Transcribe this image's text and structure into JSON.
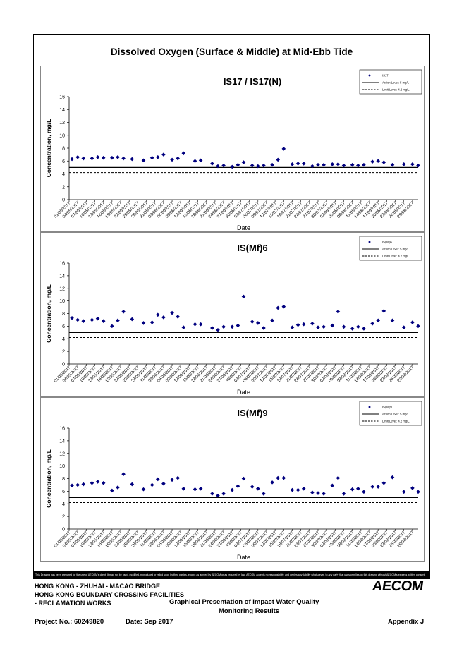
{
  "page": {
    "main_title": "Dissolved Oxygen (Surface & Middle) at Mid-Ebb Tide",
    "disclaimer": "This Drawing has been prepared for the use of AECOM's client. It may not be used, modified, reproduced or relied upon by third parties, except as agreed by AECOM or as required by law. AECOM accepts no responsibility, and denies any liability whatsoever, to any party that uses or relies on this drawing without AECOM's express written consent.",
    "footer": {
      "line1": "HONG KONG - ZHUHAI - MACAO BRIDGE",
      "line2": "HONG KONG BOUNDARY CROSSING FACILITIES",
      "line3": "- RECLAMATION WORKS",
      "center_line1": "Graphical Presentation of Impact Water Quality",
      "center_line2": "Monitoring Results",
      "project": "Project No.: 60249820",
      "date": "Date: Sep 2017",
      "appendix": "Appendix J",
      "logo": "AECOM"
    },
    "colors": {
      "marker": "#00007f",
      "line": "#000000"
    }
  },
  "chart_data": [
    {
      "type": "scatter",
      "title": "IS17 / IS17(N)",
      "xlabel": "Date",
      "ylabel": "Concentration, mg/L",
      "ylim": [
        0,
        16
      ],
      "yticks": [
        0,
        2,
        4,
        6,
        8,
        10,
        12,
        14,
        16
      ],
      "xlim": [
        "01/05/2017",
        "31/08/2017"
      ],
      "xtick_labels": [
        "01/05/2017",
        "04/05/2017",
        "07/05/2017",
        "10/05/2017",
        "13/05/2017",
        "16/05/2017",
        "19/05/2017",
        "22/05/2017",
        "25/05/2017",
        "28/05/2017",
        "31/05/2017",
        "03/06/2017",
        "06/06/2017",
        "09/06/2017",
        "12/06/2017",
        "15/06/2017",
        "18/06/2017",
        "21/06/2017",
        "24/06/2017",
        "27/06/2017",
        "30/06/2017",
        "03/07/2017",
        "06/07/2017",
        "09/07/2017",
        "12/07/2017",
        "15/07/2017",
        "18/07/2017",
        "21/07/2017",
        "24/07/2017",
        "27/07/2017",
        "30/07/2017",
        "02/08/2017",
        "05/08/2017",
        "08/08/2017",
        "11/08/2017",
        "14/08/2017",
        "17/08/2017",
        "20/08/2017",
        "23/08/2017",
        "26/08/2017",
        "29/08/2017"
      ],
      "grid": false,
      "legend_position": "top-right",
      "legend": [
        "IS17",
        "Action Level: 5 mg/L",
        "Limit Level: 4.2 mg/L"
      ],
      "action_level": 5,
      "limit_level": 4.2,
      "series": [
        {
          "name": "IS17",
          "x": [
            "02/05/2017",
            "04/05/2017",
            "06/05/2017",
            "09/05/2017",
            "11/05/2017",
            "13/05/2017",
            "16/05/2017",
            "18/05/2017",
            "20/05/2017",
            "23/05/2017",
            "27/05/2017",
            "30/05/2017",
            "01/06/2017",
            "03/06/2017",
            "06/06/2017",
            "08/06/2017",
            "10/06/2017",
            "14/06/2017",
            "16/06/2017",
            "20/06/2017",
            "22/06/2017",
            "24/06/2017",
            "27/06/2017",
            "29/06/2017",
            "01/07/2017",
            "04/07/2017",
            "06/07/2017",
            "08/07/2017",
            "11/07/2017",
            "13/07/2017",
            "15/07/2017",
            "18/07/2017",
            "20/07/2017",
            "22/07/2017",
            "25/07/2017",
            "27/07/2017",
            "29/07/2017",
            "01/08/2017",
            "03/08/2017",
            "05/08/2017",
            "08/08/2017",
            "10/08/2017",
            "12/08/2017",
            "15/08/2017",
            "17/08/2017",
            "19/08/2017",
            "22/08/2017",
            "26/08/2017",
            "29/08/2017",
            "31/08/2017"
          ],
          "y": [
            6.3,
            6.6,
            6.4,
            6.4,
            6.6,
            6.5,
            6.5,
            6.6,
            6.4,
            6.3,
            6.1,
            6.5,
            6.6,
            7.0,
            6.2,
            6.4,
            7.2,
            6.0,
            6.1,
            5.6,
            5.2,
            5.3,
            5.1,
            5.4,
            5.8,
            5.3,
            5.2,
            5.3,
            5.4,
            6.2,
            7.9,
            5.5,
            5.6,
            5.6,
            5.2,
            5.4,
            5.4,
            5.5,
            5.5,
            5.3,
            5.4,
            5.3,
            5.4,
            5.9,
            6.0,
            5.8,
            5.4,
            5.5,
            5.5,
            5.3
          ]
        }
      ]
    },
    {
      "type": "scatter",
      "title": "IS(Mf)6",
      "xlabel": "Date",
      "ylabel": "Concentration, mg/L",
      "ylim": [
        0,
        16
      ],
      "yticks": [
        0,
        2,
        4,
        6,
        8,
        10,
        12,
        14,
        16
      ],
      "xlim": [
        "01/05/2017",
        "31/08/2017"
      ],
      "xtick_labels": [
        "01/05/2017",
        "04/05/2017",
        "07/05/2017",
        "10/05/2017",
        "13/05/2017",
        "16/05/2017",
        "19/05/2017",
        "22/05/2017",
        "25/05/2017",
        "28/05/2017",
        "31/05/2017",
        "03/06/2017",
        "06/06/2017",
        "09/06/2017",
        "12/06/2017",
        "15/06/2017",
        "18/06/2017",
        "21/06/2017",
        "24/06/2017",
        "27/06/2017",
        "30/06/2017",
        "03/07/2017",
        "06/07/2017",
        "09/07/2017",
        "12/07/2017",
        "15/07/2017",
        "18/07/2017",
        "21/07/2017",
        "24/07/2017",
        "27/07/2017",
        "30/07/2017",
        "02/08/2017",
        "05/08/2017",
        "08/08/2017",
        "11/08/2017",
        "14/08/2017",
        "17/08/2017",
        "20/08/2017",
        "23/08/2017",
        "26/08/2017",
        "29/08/2017"
      ],
      "grid": false,
      "legend_position": "top-right",
      "legend": [
        "IS(Mf)6",
        "Action Level: 5 mg/L",
        "Limit Level: 4.2 mg/L"
      ],
      "action_level": 5,
      "limit_level": 4.2,
      "series": [
        {
          "name": "IS(Mf)6",
          "x": [
            "02/05/2017",
            "04/05/2017",
            "06/05/2017",
            "09/05/2017",
            "11/05/2017",
            "13/05/2017",
            "16/05/2017",
            "18/05/2017",
            "20/05/2017",
            "23/05/2017",
            "27/05/2017",
            "30/05/2017",
            "01/06/2017",
            "03/06/2017",
            "06/06/2017",
            "08/06/2017",
            "10/06/2017",
            "14/06/2017",
            "16/06/2017",
            "20/06/2017",
            "22/06/2017",
            "24/06/2017",
            "27/06/2017",
            "29/06/2017",
            "01/07/2017",
            "04/07/2017",
            "06/07/2017",
            "08/07/2017",
            "11/07/2017",
            "13/07/2017",
            "15/07/2017",
            "18/07/2017",
            "20/07/2017",
            "22/07/2017",
            "25/07/2017",
            "27/07/2017",
            "29/07/2017",
            "01/08/2017",
            "03/08/2017",
            "05/08/2017",
            "08/08/2017",
            "10/08/2017",
            "12/08/2017",
            "15/08/2017",
            "17/08/2017",
            "19/08/2017",
            "22/08/2017",
            "26/08/2017",
            "29/08/2017",
            "31/08/2017"
          ],
          "y": [
            7.3,
            7.0,
            6.8,
            7.0,
            7.2,
            6.8,
            6.0,
            6.9,
            8.3,
            7.1,
            6.5,
            6.6,
            7.8,
            7.4,
            8.1,
            7.5,
            5.8,
            6.3,
            6.3,
            5.7,
            5.4,
            5.9,
            5.9,
            6.1,
            10.7,
            6.7,
            6.5,
            5.7,
            6.9,
            8.9,
            9.1,
            5.8,
            6.2,
            6.3,
            6.4,
            5.8,
            5.9,
            6.1,
            8.3,
            5.9,
            5.6,
            5.9,
            5.6,
            6.4,
            6.9,
            8.4,
            6.9,
            5.8,
            6.6,
            6.0
          ]
        }
      ]
    },
    {
      "type": "scatter",
      "title": "IS(Mf)9",
      "xlabel": "Date",
      "ylabel": "Concentration, mg/L",
      "ylim": [
        0,
        16
      ],
      "yticks": [
        0,
        2,
        4,
        6,
        8,
        10,
        12,
        14,
        16
      ],
      "xlim": [
        "01/05/2017",
        "31/08/2017"
      ],
      "xtick_labels": [
        "01/05/2017",
        "04/05/2017",
        "07/05/2017",
        "10/05/2017",
        "13/05/2017",
        "16/05/2017",
        "19/05/2017",
        "22/05/2017",
        "25/05/2017",
        "28/05/2017",
        "31/05/2017",
        "03/06/2017",
        "06/06/2017",
        "09/06/2017",
        "12/06/2017",
        "15/06/2017",
        "18/06/2017",
        "21/06/2017",
        "24/06/2017",
        "27/06/2017",
        "30/06/2017",
        "03/07/2017",
        "06/07/2017",
        "09/07/2017",
        "12/07/2017",
        "15/07/2017",
        "18/07/2017",
        "21/07/2017",
        "24/07/2017",
        "27/07/2017",
        "30/07/2017",
        "02/08/2017",
        "05/08/2017",
        "08/08/2017",
        "11/08/2017",
        "14/08/2017",
        "17/08/2017",
        "20/08/2017",
        "23/08/2017",
        "26/08/2017",
        "29/08/2017"
      ],
      "grid": false,
      "legend_position": "top-right",
      "legend": [
        "IS(Mf)9",
        "Action Level: 5 mg/L",
        "Limit Level: 4.2 mg/L"
      ],
      "action_level": 5,
      "limit_level": 4.2,
      "series": [
        {
          "name": "IS(Mf)9",
          "x": [
            "02/05/2017",
            "04/05/2017",
            "06/05/2017",
            "09/05/2017",
            "11/05/2017",
            "13/05/2017",
            "16/05/2017",
            "18/05/2017",
            "20/05/2017",
            "23/05/2017",
            "27/05/2017",
            "30/05/2017",
            "01/06/2017",
            "03/06/2017",
            "06/06/2017",
            "08/06/2017",
            "10/06/2017",
            "14/06/2017",
            "16/06/2017",
            "20/06/2017",
            "22/06/2017",
            "24/06/2017",
            "27/06/2017",
            "29/06/2017",
            "01/07/2017",
            "04/07/2017",
            "06/07/2017",
            "08/07/2017",
            "11/07/2017",
            "13/07/2017",
            "15/07/2017",
            "18/07/2017",
            "20/07/2017",
            "22/07/2017",
            "25/07/2017",
            "27/07/2017",
            "29/07/2017",
            "01/08/2017",
            "03/08/2017",
            "05/08/2017",
            "08/08/2017",
            "10/08/2017",
            "12/08/2017",
            "15/08/2017",
            "17/08/2017",
            "19/08/2017",
            "22/08/2017",
            "26/08/2017",
            "29/08/2017",
            "31/08/2017"
          ],
          "y": [
            6.9,
            7.0,
            7.1,
            7.3,
            7.5,
            7.3,
            6.1,
            6.6,
            8.7,
            7.1,
            6.3,
            7.0,
            7.9,
            7.2,
            7.8,
            8.1,
            6.4,
            6.3,
            6.4,
            5.6,
            5.3,
            5.6,
            6.2,
            6.8,
            8.0,
            6.7,
            6.4,
            5.6,
            7.4,
            8.1,
            8.1,
            6.2,
            6.2,
            6.4,
            5.8,
            5.7,
            5.6,
            6.9,
            8.1,
            5.6,
            6.3,
            6.4,
            5.9,
            6.7,
            6.7,
            7.3,
            8.2,
            5.9,
            6.5,
            5.9
          ]
        }
      ]
    }
  ]
}
